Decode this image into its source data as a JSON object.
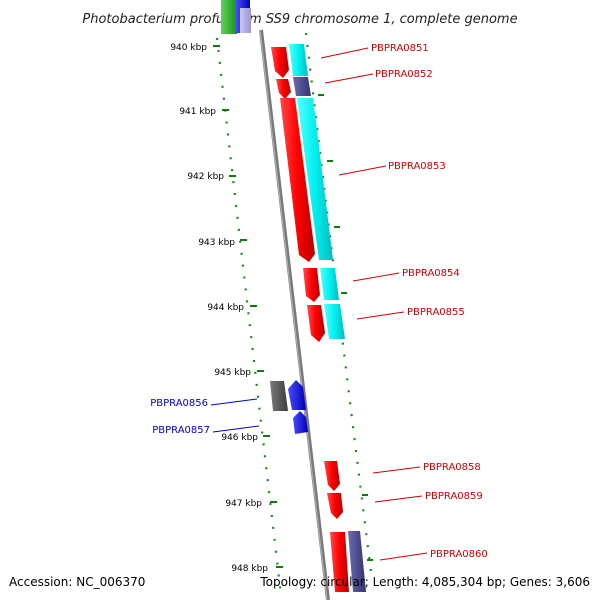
{
  "title": "Photobacterium profundum SS9 chromosome 1, complete genome",
  "footer": {
    "accession": "Accession: NC_006370",
    "summary": "Topology: circular; Length: 4,085,304 bp; Genes: 3,606"
  },
  "scale_labels": [
    "940 kbp",
    "941 kbp",
    "942 kbp",
    "943 kbp",
    "944 kbp",
    "945 kbp",
    "946 kbp",
    "947 kbp",
    "948 kbp"
  ],
  "genes": [
    {
      "label": "PBPRA0851",
      "strand": "+",
      "color": "#cc0000"
    },
    {
      "label": "PBPRA0852",
      "strand": "+",
      "color": "#cc0000"
    },
    {
      "label": "PBPRA0853",
      "strand": "+",
      "color": "#cc0000"
    },
    {
      "label": "PBPRA0854",
      "strand": "+",
      "color": "#cc0000"
    },
    {
      "label": "PBPRA0855",
      "strand": "+",
      "color": "#cc0000"
    },
    {
      "label": "PBPRA0856",
      "strand": "-",
      "color": "#0000cc"
    },
    {
      "label": "PBPRA0857",
      "strand": "-",
      "color": "#0000cc"
    },
    {
      "label": "PBPRA0858",
      "strand": "+",
      "color": "#cc0000"
    },
    {
      "label": "PBPRA0859",
      "strand": "+",
      "color": "#cc0000"
    },
    {
      "label": "PBPRA0860",
      "strand": "+",
      "color": "#cc0000"
    }
  ],
  "colors": {
    "forward_cds": "#ff0000",
    "reverse_cds": "#0000ff",
    "cog_cyan": "#00ffff",
    "cog_purple": "#4b4b8f",
    "backbone": "#808080",
    "scale_ticks": "#008000",
    "gene_label_forward": "#cc0000",
    "gene_label_reverse": "#0000cc"
  }
}
